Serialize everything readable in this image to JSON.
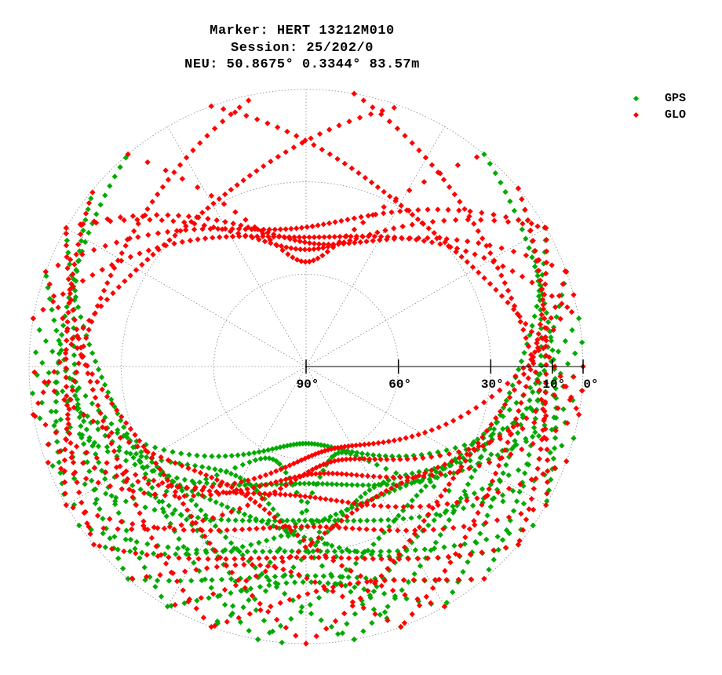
{
  "chart_data": {
    "type": "scatter",
    "projection": "polar skyplot (azimuth / elevation)",
    "title": [
      "Marker: HERT 13212M010",
      "Session: 25/202/0",
      "NEU: 50.8675° 0.3344° 83.57m"
    ],
    "elevation_ticks": [
      {
        "label": "90°",
        "value": 90
      },
      {
        "label": "60°",
        "value": 60
      },
      {
        "label": "30°",
        "value": 30
      },
      {
        "label": "10°",
        "value": 10
      },
      {
        "label": "0°",
        "value": 0
      }
    ],
    "elevation_circles": [
      0,
      30,
      60
    ],
    "grid": "dotted",
    "legend_position": "top-right",
    "series": [
      {
        "name": "GPS",
        "color": "#00aa00"
      },
      {
        "name": "GLO",
        "color": "#ff0000"
      }
    ]
  },
  "colors": {
    "gps": "#00aa00",
    "glo": "#ff0000",
    "grid": "#888888"
  }
}
